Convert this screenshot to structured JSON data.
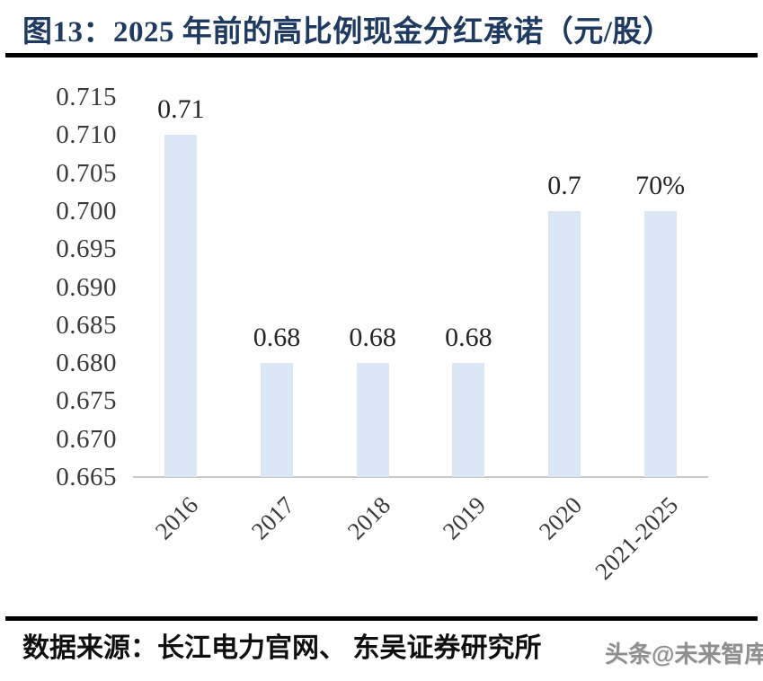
{
  "page": {
    "title": "图13：2025 年前的高比例现金分红承诺（元/股）"
  },
  "chart_data": {
    "type": "bar",
    "title": "图13：2025 年前的高比例现金分红承诺（元/股）",
    "categories": [
      "2016",
      "2017",
      "2018",
      "2019",
      "2020",
      "2021-2025"
    ],
    "values": [
      0.71,
      0.68,
      0.68,
      0.68,
      0.7,
      0.7
    ],
    "data_labels": [
      "0.71",
      "0.68",
      "0.68",
      "0.68",
      "0.7",
      "70%"
    ],
    "xlabel": "",
    "ylabel": "",
    "ylim": [
      0.665,
      0.715
    ],
    "ytick_step": 0.005,
    "ytick_labels": [
      "0.715",
      "0.710",
      "0.705",
      "0.700",
      "0.695",
      "0.690",
      "0.685",
      "0.680",
      "0.675",
      "0.670",
      "0.665"
    ],
    "grid": false,
    "legend_position": "none",
    "bar_color": "#dbe7f4",
    "axis_line_color": "#c9c9c9",
    "value_label_color": "#262626",
    "tick_label_color": "#3a3a3a",
    "title_color": "#1f3a60"
  },
  "footer": {
    "source": "数据来源：长江电力官网、 东吴证券研究所",
    "watermark": "头条@未来智库"
  },
  "colors": {
    "divider": "#000000",
    "background": "#ffffff"
  }
}
